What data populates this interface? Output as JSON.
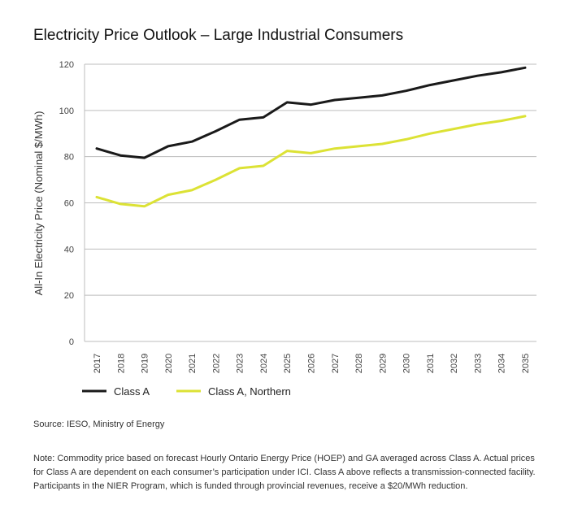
{
  "title": "Electricity Price Outlook – Large Industrial Consumers",
  "source": "Source: IESO, Ministry of Energy",
  "note": "Note: Commodity price based on forecast Hourly Ontario Energy Price (HOEP) and GA averaged across Class A. Actual prices for Class A are dependent on each consumer’s participation under ICI. Class A above reflects a transmission-connected facility. Participants in the NIER Program, which is funded through provincial revenues, receive a $20/MWh reduction.",
  "chart_data": {
    "type": "line",
    "title": "Electricity Price Outlook – Large Industrial Consumers",
    "xlabel": "",
    "ylabel": "All-In Electricity Price (Nominal $/MWh)",
    "categories": [
      "2017",
      "2018",
      "2019",
      "2020",
      "2021",
      "2022",
      "2023",
      "2024",
      "2025",
      "2026",
      "2027",
      "2028",
      "2029",
      "2030",
      "2031",
      "2032",
      "2033",
      "2034",
      "2035"
    ],
    "yticks": [
      "0",
      "20",
      "40",
      "60",
      "80",
      "100",
      "120"
    ],
    "ylim": [
      0,
      120
    ],
    "grid": true,
    "legend_position": "bottom-left",
    "series": [
      {
        "name": "Class A",
        "color": "#1a1a1a",
        "values": [
          83.5,
          80.5,
          79.5,
          84.5,
          86.5,
          91,
          96,
          97,
          103.5,
          102.5,
          104.5,
          105.5,
          106.5,
          108.5,
          111,
          113,
          115,
          116.5,
          118.5
        ]
      },
      {
        "name": "Class A, Northern",
        "color": "#dce235",
        "values": [
          62.5,
          59.5,
          58.5,
          63.5,
          65.5,
          70,
          75,
          76,
          82.5,
          81.5,
          83.5,
          84.5,
          85.5,
          87.5,
          90,
          92,
          94,
          95.5,
          97.5
        ]
      }
    ]
  }
}
